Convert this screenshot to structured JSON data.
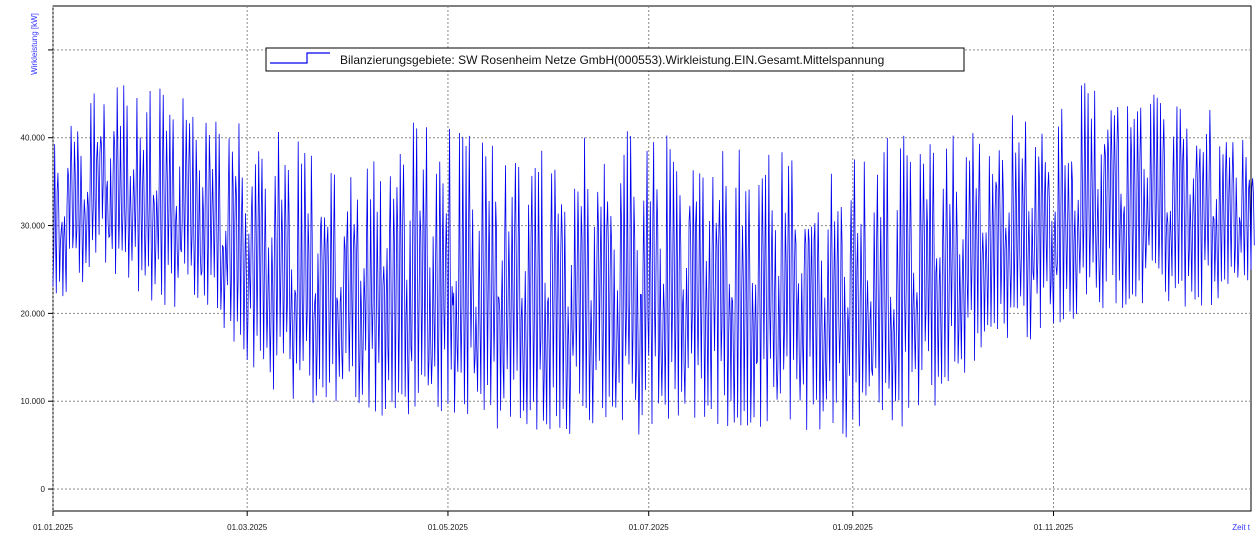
{
  "chart_data": {
    "type": "line",
    "title": "",
    "ylabel": "Wirkleistung [kW]",
    "xlabel": "Zeit t",
    "ylim": [
      -2500,
      55000
    ],
    "xlim": [
      "2025-01-01",
      "2025-12-31"
    ],
    "grid": true,
    "legend_position": "top-center",
    "y_ticks": [
      0,
      10000,
      20000,
      30000,
      40000,
      50000
    ],
    "y_tick_labels": [
      "0",
      "10.000",
      "20.000",
      "30.000",
      "40.000",
      ""
    ],
    "x_ticks": [
      "2025-01-01",
      "2025-03-01",
      "2025-05-01",
      "2025-07-01",
      "2025-09-01",
      "2025-11-01"
    ],
    "x_tick_labels": [
      "01.01.2025",
      "01.03.2025",
      "01.05.2025",
      "01.07.2025",
      "01.09.2025",
      "01.11.2025"
    ],
    "series": [
      {
        "name": "Bilanzierungsgebiete: SW Rosenheim Netze GmbH(000553).Wirkleistung.EIN.Gesamt.Mittelspannung",
        "color": "#0000ee",
        "x": [
          "2025-01-01",
          "2025-01-15",
          "2025-02-01",
          "2025-02-15",
          "2025-03-01",
          "2025-03-15",
          "2025-04-01",
          "2025-04-15",
          "2025-05-01",
          "2025-05-15",
          "2025-06-01",
          "2025-06-15",
          "2025-07-01",
          "2025-07-15",
          "2025-08-01",
          "2025-08-15",
          "2025-09-01",
          "2025-09-15",
          "2025-10-01",
          "2025-10-15",
          "2025-11-01",
          "2025-11-15",
          "2025-12-01",
          "2025-12-15",
          "2025-12-31"
        ],
        "min": [
          19000,
          25000,
          19000,
          20000,
          12000,
          8000,
          8000,
          5000,
          6000,
          5000,
          5000,
          5000,
          5000,
          6000,
          5000,
          5000,
          4500,
          5000,
          10000,
          16000,
          16000,
          19000,
          20000,
          19000,
          23000
        ],
        "max": [
          40000,
          46000,
          46000,
          44000,
          42000,
          41000,
          37000,
          42000,
          42000,
          40000,
          39000,
          41000,
          41000,
          42000,
          38000,
          40000,
          38000,
          41000,
          41000,
          43000,
          43000,
          48000,
          47000,
          46000,
          40000
        ]
      }
    ]
  }
}
